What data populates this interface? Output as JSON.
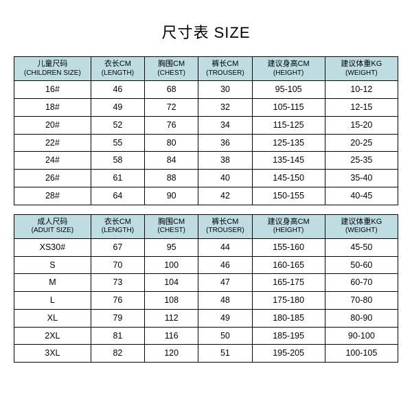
{
  "title": "尺寸表 SIZE",
  "colors": {
    "header_bg": "#bddde2",
    "row_bg": "#ffffff",
    "border": "#000000"
  },
  "columns": {
    "size": {
      "cn": "尺码",
      "en": "SIZE"
    },
    "length": {
      "cn": "衣长CM",
      "en": "LENGTH"
    },
    "chest": {
      "cn": "胸围CM",
      "en": "CHEST"
    },
    "trouser": {
      "cn": "裤长CM",
      "en": "TROUSER"
    },
    "height": {
      "cn": "建议身高CM",
      "en": "HEIGHT"
    },
    "weight": {
      "cn": "建议体重KG",
      "en": "WEIGHT"
    }
  },
  "sections": [
    {
      "size_header": {
        "cn": "儿童尺码",
        "en": "CHILDREN SIZE"
      },
      "rows": [
        {
          "size": "16#",
          "length": "46",
          "chest": "68",
          "trouser": "30",
          "height": "95-105",
          "weight": "10-12"
        },
        {
          "size": "18#",
          "length": "49",
          "chest": "72",
          "trouser": "32",
          "height": "105-115",
          "weight": "12-15"
        },
        {
          "size": "20#",
          "length": "52",
          "chest": "76",
          "trouser": "34",
          "height": "115-125",
          "weight": "15-20"
        },
        {
          "size": "22#",
          "length": "55",
          "chest": "80",
          "trouser": "36",
          "height": "125-135",
          "weight": "20-25"
        },
        {
          "size": "24#",
          "length": "58",
          "chest": "84",
          "trouser": "38",
          "height": "135-145",
          "weight": "25-35"
        },
        {
          "size": "26#",
          "length": "61",
          "chest": "88",
          "trouser": "40",
          "height": "145-150",
          "weight": "35-40"
        },
        {
          "size": "28#",
          "length": "64",
          "chest": "90",
          "trouser": "42",
          "height": "150-155",
          "weight": "40-45"
        }
      ]
    },
    {
      "size_header": {
        "cn": "成人尺码",
        "en": "ADUIT SIZE"
      },
      "rows": [
        {
          "size": "XS30#",
          "length": "67",
          "chest": "95",
          "trouser": "44",
          "height": "155-160",
          "weight": "45-50"
        },
        {
          "size": "S",
          "length": "70",
          "chest": "100",
          "trouser": "46",
          "height": "160-165",
          "weight": "50-60"
        },
        {
          "size": "M",
          "length": "73",
          "chest": "104",
          "trouser": "47",
          "height": "165-175",
          "weight": "60-70"
        },
        {
          "size": "L",
          "length": "76",
          "chest": "108",
          "trouser": "48",
          "height": "175-180",
          "weight": "70-80"
        },
        {
          "size": "XL",
          "length": "79",
          "chest": "112",
          "trouser": "49",
          "height": "180-185",
          "weight": "80-90"
        },
        {
          "size": "2XL",
          "length": "81",
          "chest": "116",
          "trouser": "50",
          "height": "185-195",
          "weight": "90-100"
        },
        {
          "size": "3XL",
          "length": "82",
          "chest": "120",
          "trouser": "51",
          "height": "195-205",
          "weight": "100-105"
        }
      ]
    }
  ],
  "col_widths_pct": [
    20,
    14,
    14,
    14,
    19,
    19
  ]
}
